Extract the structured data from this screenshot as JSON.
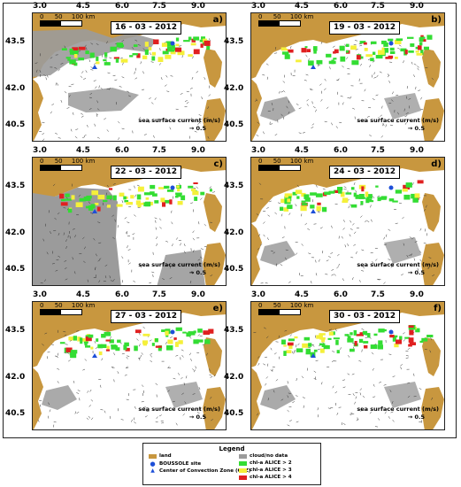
{
  "colors": {
    "land": "#c8973f",
    "cloud": "#9b9b9b",
    "sea": "#ffffff",
    "chl2": "#33dd33",
    "chl3": "#f5f03a",
    "chl4": "#e02020",
    "site": "#1d4fd8"
  },
  "lon_ticks": [
    "3.0",
    "4.5",
    "6.0",
    "7.5",
    "9.0"
  ],
  "lat_ticks": [
    "43.5",
    "42.0",
    "40.5"
  ],
  "scale": {
    "zero": "0",
    "fifty": "50",
    "hundred": "100 km"
  },
  "current_caption": "sea surface current (m/s)",
  "current_ref": "→ 0.5",
  "panels": [
    {
      "date": "16 - 03 - 2012",
      "label": "a)",
      "cloud": "heavy"
    },
    {
      "date": "19 - 03 - 2012",
      "label": "b)",
      "cloud": "low"
    },
    {
      "date": "22 - 03 - 2012",
      "label": "c)",
      "cloud": "west"
    },
    {
      "date": "24 - 03 - 2012",
      "label": "d)",
      "cloud": "low"
    },
    {
      "date": "27 - 03 - 2012",
      "label": "e)",
      "cloud": "low"
    },
    {
      "date": "30 - 03 - 2012",
      "label": "f)",
      "cloud": "low"
    }
  ],
  "legend": {
    "title": "Legend",
    "land": "land",
    "site": "BOUSSOLE site",
    "ccz": "Center of Convection Zone (CCZ)",
    "cloud": "cloud/no data",
    "chl2": "chl-a ALICE > 2",
    "chl3": "chl-a ALICE > 3",
    "chl4": "chl-a ALICE > 4"
  }
}
